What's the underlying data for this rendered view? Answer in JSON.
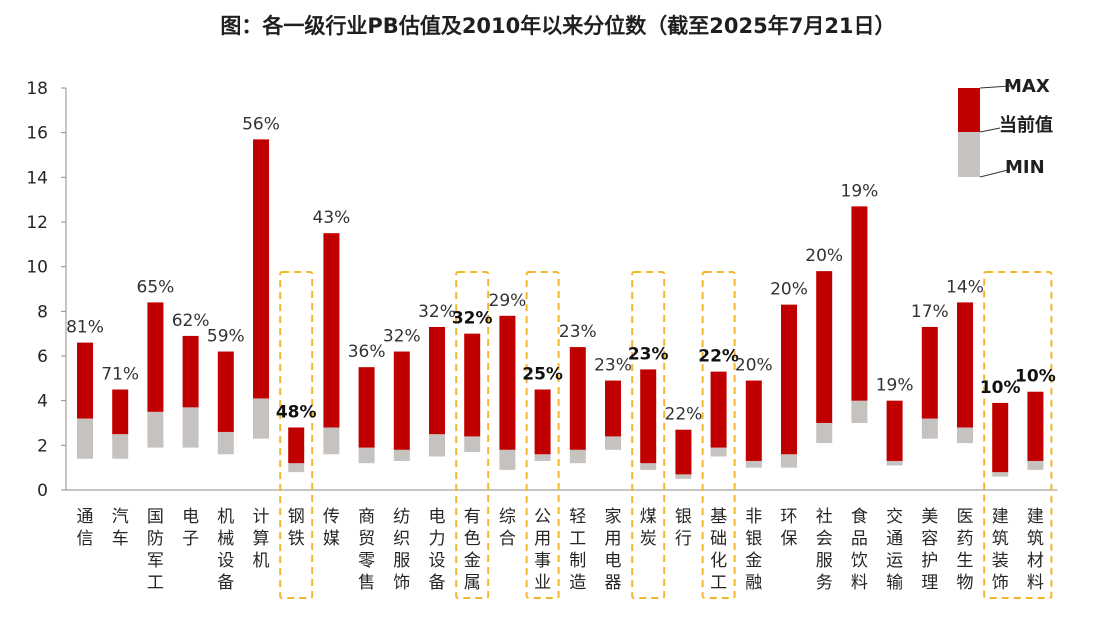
{
  "chart_data": {
    "type": "floating-bar",
    "title": "图：各一级行业PB估值及2010年以来分位数（截至2025年7月21日）",
    "ylim": [
      0,
      18
    ],
    "yticks": [
      0,
      2,
      4,
      6,
      8,
      10,
      12,
      14,
      16,
      18
    ],
    "legend": {
      "position": "top-right",
      "entries": [
        "MAX",
        "当前值",
        "MIN"
      ]
    },
    "colors": {
      "upper": "#c00000",
      "lower": "#c6c2c0",
      "highlight_box": "#f5b52e"
    },
    "industries": [
      {
        "name": "通信",
        "max": 6.6,
        "current": 3.2,
        "min": 1.4,
        "pct": "81%",
        "highlight": false
      },
      {
        "name": "汽车",
        "max": 4.5,
        "current": 2.5,
        "min": 1.4,
        "pct": "71%",
        "highlight": false
      },
      {
        "name": "国防军工",
        "max": 8.4,
        "current": 3.5,
        "min": 1.9,
        "pct": "65%",
        "highlight": false
      },
      {
        "name": "电子",
        "max": 6.9,
        "current": 3.7,
        "min": 1.9,
        "pct": "62%",
        "highlight": false
      },
      {
        "name": "机械设备",
        "max": 6.2,
        "current": 2.6,
        "min": 1.6,
        "pct": "59%",
        "highlight": false
      },
      {
        "name": "计算机",
        "max": 15.7,
        "current": 4.1,
        "min": 2.3,
        "pct": "56%",
        "highlight": false
      },
      {
        "name": "钢铁",
        "max": 2.8,
        "current": 1.2,
        "min": 0.8,
        "pct": "48%",
        "highlight": true
      },
      {
        "name": "传媒",
        "max": 11.5,
        "current": 2.8,
        "min": 1.6,
        "pct": "43%",
        "highlight": false
      },
      {
        "name": "商贸零售",
        "max": 5.5,
        "current": 1.9,
        "min": 1.2,
        "pct": "36%",
        "highlight": false
      },
      {
        "name": "纺织服饰",
        "max": 6.2,
        "current": 1.8,
        "min": 1.3,
        "pct": "32%",
        "highlight": false
      },
      {
        "name": "电力设备",
        "max": 7.3,
        "current": 2.5,
        "min": 1.5,
        "pct": "32%",
        "highlight": false
      },
      {
        "name": "有色金属",
        "max": 7.0,
        "current": 2.4,
        "min": 1.7,
        "pct": "32%",
        "highlight": true
      },
      {
        "name": "综合",
        "max": 7.8,
        "current": 1.8,
        "min": 0.9,
        "pct": "29%",
        "highlight": false
      },
      {
        "name": "公用事业",
        "max": 4.5,
        "current": 1.6,
        "min": 1.3,
        "pct": "25%",
        "highlight": true
      },
      {
        "name": "轻工制造",
        "max": 6.4,
        "current": 1.8,
        "min": 1.2,
        "pct": "23%",
        "highlight": false
      },
      {
        "name": "家用电器",
        "max": 4.9,
        "current": 2.4,
        "min": 1.8,
        "pct": "23%",
        "highlight": false
      },
      {
        "name": "煤炭",
        "max": 5.4,
        "current": 1.2,
        "min": 0.9,
        "pct": "23%",
        "highlight": true
      },
      {
        "name": "银行",
        "max": 2.7,
        "current": 0.7,
        "min": 0.5,
        "pct": "22%",
        "highlight": false
      },
      {
        "name": "基础化工",
        "max": 5.3,
        "current": 1.9,
        "min": 1.5,
        "pct": "22%",
        "highlight": true
      },
      {
        "name": "非银金融",
        "max": 4.9,
        "current": 1.3,
        "min": 1.0,
        "pct": "20%",
        "highlight": false
      },
      {
        "name": "环保",
        "max": 8.3,
        "current": 1.6,
        "min": 1.0,
        "pct": "20%",
        "highlight": false
      },
      {
        "name": "社会服务",
        "max": 9.8,
        "current": 3.0,
        "min": 2.1,
        "pct": "20%",
        "highlight": false
      },
      {
        "name": "食品饮料",
        "max": 12.7,
        "current": 4.0,
        "min": 3.0,
        "pct": "19%",
        "highlight": false
      },
      {
        "name": "交通运输",
        "max": 4.0,
        "current": 1.3,
        "min": 1.1,
        "pct": "19%",
        "highlight": false
      },
      {
        "name": "美容护理",
        "max": 7.3,
        "current": 3.2,
        "min": 2.3,
        "pct": "17%",
        "highlight": false
      },
      {
        "name": "医药生物",
        "max": 8.4,
        "current": 2.8,
        "min": 2.1,
        "pct": "14%",
        "highlight": false
      },
      {
        "name": "建筑装饰",
        "max": 3.9,
        "current": 0.8,
        "min": 0.6,
        "pct": "10%",
        "highlight": true
      },
      {
        "name": "建筑材料",
        "max": 4.4,
        "current": 1.3,
        "min": 0.9,
        "pct": "10%",
        "highlight": true
      }
    ],
    "highlight_groups": [
      {
        "members": [
          "钢铁"
        ]
      },
      {
        "members": [
          "有色金属"
        ]
      },
      {
        "members": [
          "公用事业"
        ]
      },
      {
        "members": [
          "煤炭"
        ]
      },
      {
        "members": [
          "基础化工"
        ]
      },
      {
        "members": [
          "建筑装饰",
          "建筑材料"
        ]
      }
    ]
  }
}
